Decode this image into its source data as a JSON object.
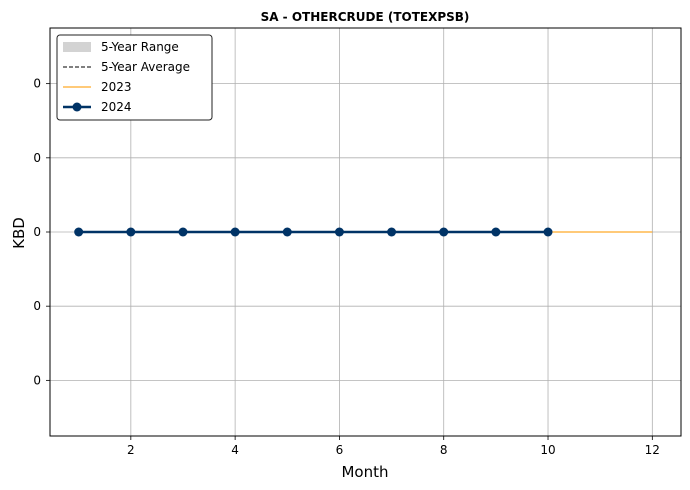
{
  "chart_data": {
    "type": "line",
    "title": "SA - OTHERCRUDE (TOTEXPSB)",
    "xlabel": "Month",
    "ylabel": "KBD",
    "xlim": [
      0.45,
      12.55
    ],
    "ylim": [
      -0.055,
      0.055
    ],
    "x_ticks": [
      2,
      4,
      6,
      8,
      10,
      12
    ],
    "y_ticks": [
      -0.04,
      -0.02,
      0,
      0.02,
      0.04
    ],
    "y_tick_labels": [
      "0",
      "0",
      "0",
      "0",
      "0"
    ],
    "grid": true,
    "legend_position": "top-left",
    "legend": [
      "5-Year Range",
      "5-Year Average",
      "2023",
      "2024"
    ],
    "series": [
      {
        "name": "5-Year Range",
        "kind": "band",
        "color": "#d3d3d3",
        "x": [
          1,
          2,
          3,
          4,
          5,
          6,
          7,
          8,
          9,
          10,
          11,
          12
        ],
        "low": [
          0,
          0,
          0,
          0,
          0,
          0,
          0,
          0,
          0,
          0,
          0,
          0
        ],
        "high": [
          0,
          0,
          0,
          0,
          0,
          0,
          0,
          0,
          0,
          0,
          0,
          0
        ]
      },
      {
        "name": "5-Year Average",
        "kind": "dashed",
        "color": "#000000",
        "x": [
          1,
          2,
          3,
          4,
          5,
          6,
          7,
          8,
          9,
          10,
          11,
          12
        ],
        "y": [
          0,
          0,
          0,
          0,
          0,
          0,
          0,
          0,
          0,
          0,
          0,
          0
        ]
      },
      {
        "name": "2023",
        "kind": "line",
        "color": "#ffb84d",
        "x": [
          1,
          2,
          3,
          4,
          5,
          6,
          7,
          8,
          9,
          10,
          11,
          12
        ],
        "y": [
          0,
          0,
          0,
          0,
          0,
          0,
          0,
          0,
          0,
          0,
          0,
          0
        ]
      },
      {
        "name": "2024",
        "kind": "line-marker",
        "color": "#003366",
        "x": [
          1,
          2,
          3,
          4,
          5,
          6,
          7,
          8,
          9,
          10
        ],
        "y": [
          0,
          0,
          0,
          0,
          0,
          0,
          0,
          0,
          0,
          0
        ]
      }
    ]
  }
}
